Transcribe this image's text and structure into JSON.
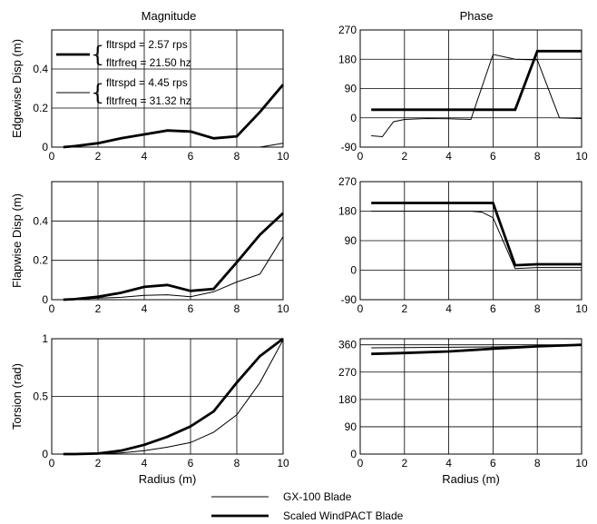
{
  "column_titles": [
    "Magnitude",
    "Phase"
  ],
  "legend": {
    "thin": "GX-100 Blade",
    "thick": "Scaled WindPACT Blade"
  },
  "inset_legend": {
    "thick": [
      "fltrspd = 2.57 rps",
      "fltrfreq = 21.50 hz"
    ],
    "thin": [
      "fltrspd = 4.45 rps",
      "fltrfreq = 31.32 hz"
    ]
  },
  "chart_data": [
    {
      "type": "line",
      "panel": "edgewise-magnitude",
      "title": "Magnitude",
      "xlabel": "",
      "ylabel": "Edgewise Disp (m)",
      "xlim": [
        0,
        10
      ],
      "ylim": [
        0,
        0.6
      ],
      "xticks": [
        0,
        2,
        4,
        6,
        8,
        10
      ],
      "yticks": [
        0,
        0.2,
        0.4
      ],
      "ytick_labels": [
        "0",
        "0.2",
        "0.4"
      ],
      "series": [
        {
          "name": "GX-100 Blade",
          "style": "thin",
          "x": [
            0.5,
            1,
            2,
            3,
            4,
            5,
            6,
            7,
            8,
            9,
            10
          ],
          "y": [
            0,
            0,
            0,
            0,
            0,
            0,
            0,
            0,
            0,
            0,
            0.02
          ]
        },
        {
          "name": "Scaled WindPACT Blade",
          "style": "thick",
          "x": [
            0.5,
            1,
            2,
            3,
            4,
            5,
            6,
            7,
            8,
            9,
            10
          ],
          "y": [
            0,
            0.005,
            0.02,
            0.045,
            0.065,
            0.085,
            0.08,
            0.045,
            0.055,
            0.18,
            0.32
          ]
        }
      ]
    },
    {
      "type": "line",
      "panel": "edgewise-phase",
      "title": "Phase",
      "xlabel": "",
      "ylabel": "",
      "xlim": [
        0,
        10
      ],
      "ylim": [
        -90,
        270
      ],
      "xticks": [
        0,
        2,
        4,
        6,
        8,
        10
      ],
      "yticks": [
        -90,
        0,
        90,
        180,
        270
      ],
      "ytick_labels": [
        "-90",
        "0",
        "90",
        "180",
        "270"
      ],
      "series": [
        {
          "name": "GX-100 Blade",
          "style": "thin",
          "x": [
            0.5,
            1,
            1.5,
            2,
            3,
            4,
            5,
            6,
            7,
            8,
            9,
            10
          ],
          "y": [
            -55,
            -58,
            -12,
            -5,
            -2,
            -3,
            -5,
            195,
            180,
            178,
            0,
            -2
          ]
        },
        {
          "name": "Scaled WindPACT Blade",
          "style": "thick",
          "x": [
            0.5,
            1,
            2,
            3,
            4,
            5,
            6,
            7,
            8,
            9,
            10
          ],
          "y": [
            25,
            25,
            25,
            25,
            25,
            25,
            25,
            25,
            205,
            205,
            205
          ]
        }
      ]
    },
    {
      "type": "line",
      "panel": "flapwise-magnitude",
      "title": "",
      "xlabel": "",
      "ylabel": "Flapwise Disp (m)",
      "xlim": [
        0,
        10
      ],
      "ylim": [
        0,
        0.6
      ],
      "xticks": [
        0,
        2,
        4,
        6,
        8,
        10
      ],
      "yticks": [
        0,
        0.2,
        0.4
      ],
      "ytick_labels": [
        "0",
        "0.2",
        "0.4"
      ],
      "series": [
        {
          "name": "GX-100 Blade",
          "style": "thin",
          "x": [
            0.5,
            1,
            2,
            3,
            4,
            5,
            6,
            7,
            8,
            9,
            10
          ],
          "y": [
            0,
            0.002,
            0.008,
            0.012,
            0.022,
            0.025,
            0.015,
            0.04,
            0.09,
            0.13,
            0.32
          ]
        },
        {
          "name": "Scaled WindPACT Blade",
          "style": "thick",
          "x": [
            0.5,
            1,
            2,
            3,
            4,
            5,
            6,
            7,
            8,
            9,
            10
          ],
          "y": [
            0,
            0.003,
            0.015,
            0.035,
            0.065,
            0.075,
            0.045,
            0.055,
            0.19,
            0.33,
            0.44
          ]
        }
      ]
    },
    {
      "type": "line",
      "panel": "flapwise-phase",
      "title": "",
      "xlabel": "",
      "ylabel": "",
      "xlim": [
        0,
        10
      ],
      "ylim": [
        -90,
        270
      ],
      "xticks": [
        0,
        2,
        4,
        6,
        8,
        10
      ],
      "yticks": [
        -90,
        0,
        90,
        180,
        270
      ],
      "ytick_labels": [
        "-90",
        "0",
        "90",
        "180",
        "270"
      ],
      "series": [
        {
          "name": "GX-100 Blade",
          "style": "thin",
          "x": [
            0.5,
            1,
            2,
            3,
            4,
            5,
            5.5,
            6,
            7,
            8,
            9,
            10
          ],
          "y": [
            180,
            180,
            180,
            180,
            180,
            180,
            177,
            160,
            5,
            8,
            8,
            8
          ]
        },
        {
          "name": "Scaled WindPACT Blade",
          "style": "thick",
          "x": [
            0.5,
            1,
            2,
            3,
            4,
            5,
            6,
            7,
            8,
            9,
            10
          ],
          "y": [
            205,
            205,
            205,
            205,
            205,
            205,
            205,
            15,
            18,
            18,
            18
          ]
        }
      ]
    },
    {
      "type": "line",
      "panel": "torsion-magnitude",
      "title": "",
      "xlabel": "Radius (m)",
      "ylabel": "Torsion (rad)",
      "xlim": [
        0,
        10
      ],
      "ylim": [
        0,
        1
      ],
      "xticks": [
        0,
        2,
        4,
        6,
        8,
        10
      ],
      "yticks": [
        0,
        0.5,
        1
      ],
      "ytick_labels": [
        "0",
        "0.5",
        "1"
      ],
      "series": [
        {
          "name": "GX-100 Blade",
          "style": "thin",
          "x": [
            0.5,
            1,
            2,
            3,
            4,
            5,
            6,
            7,
            8,
            9,
            10
          ],
          "y": [
            0,
            0,
            0,
            0.01,
            0.03,
            0.06,
            0.1,
            0.19,
            0.34,
            0.62,
            0.99
          ]
        },
        {
          "name": "Scaled WindPACT Blade",
          "style": "thick",
          "x": [
            0.5,
            1,
            2,
            3,
            4,
            5,
            6,
            7,
            8,
            9,
            10
          ],
          "y": [
            0,
            0,
            0.005,
            0.03,
            0.08,
            0.15,
            0.24,
            0.37,
            0.62,
            0.85,
            1.0
          ]
        }
      ]
    },
    {
      "type": "line",
      "panel": "torsion-phase",
      "title": "",
      "xlabel": "Radius (m)",
      "ylabel": "",
      "xlim": [
        0,
        10
      ],
      "ylim": [
        0,
        380
      ],
      "xticks": [
        0,
        2,
        4,
        6,
        8,
        10
      ],
      "yticks": [
        0,
        90,
        180,
        270,
        360
      ],
      "ytick_labels": [
        "0",
        "90",
        "180",
        "270",
        "360"
      ],
      "series": [
        {
          "name": "GX-100 Blade",
          "style": "thin",
          "x": [
            0.5,
            2,
            4,
            6,
            8,
            10
          ],
          "y": [
            350,
            351,
            352,
            353,
            356,
            360
          ]
        },
        {
          "name": "Scaled WindPACT Blade",
          "style": "thick",
          "x": [
            0.5,
            2,
            4,
            6,
            8,
            10
          ],
          "y": [
            330,
            333,
            338,
            347,
            355,
            360
          ]
        }
      ]
    }
  ]
}
